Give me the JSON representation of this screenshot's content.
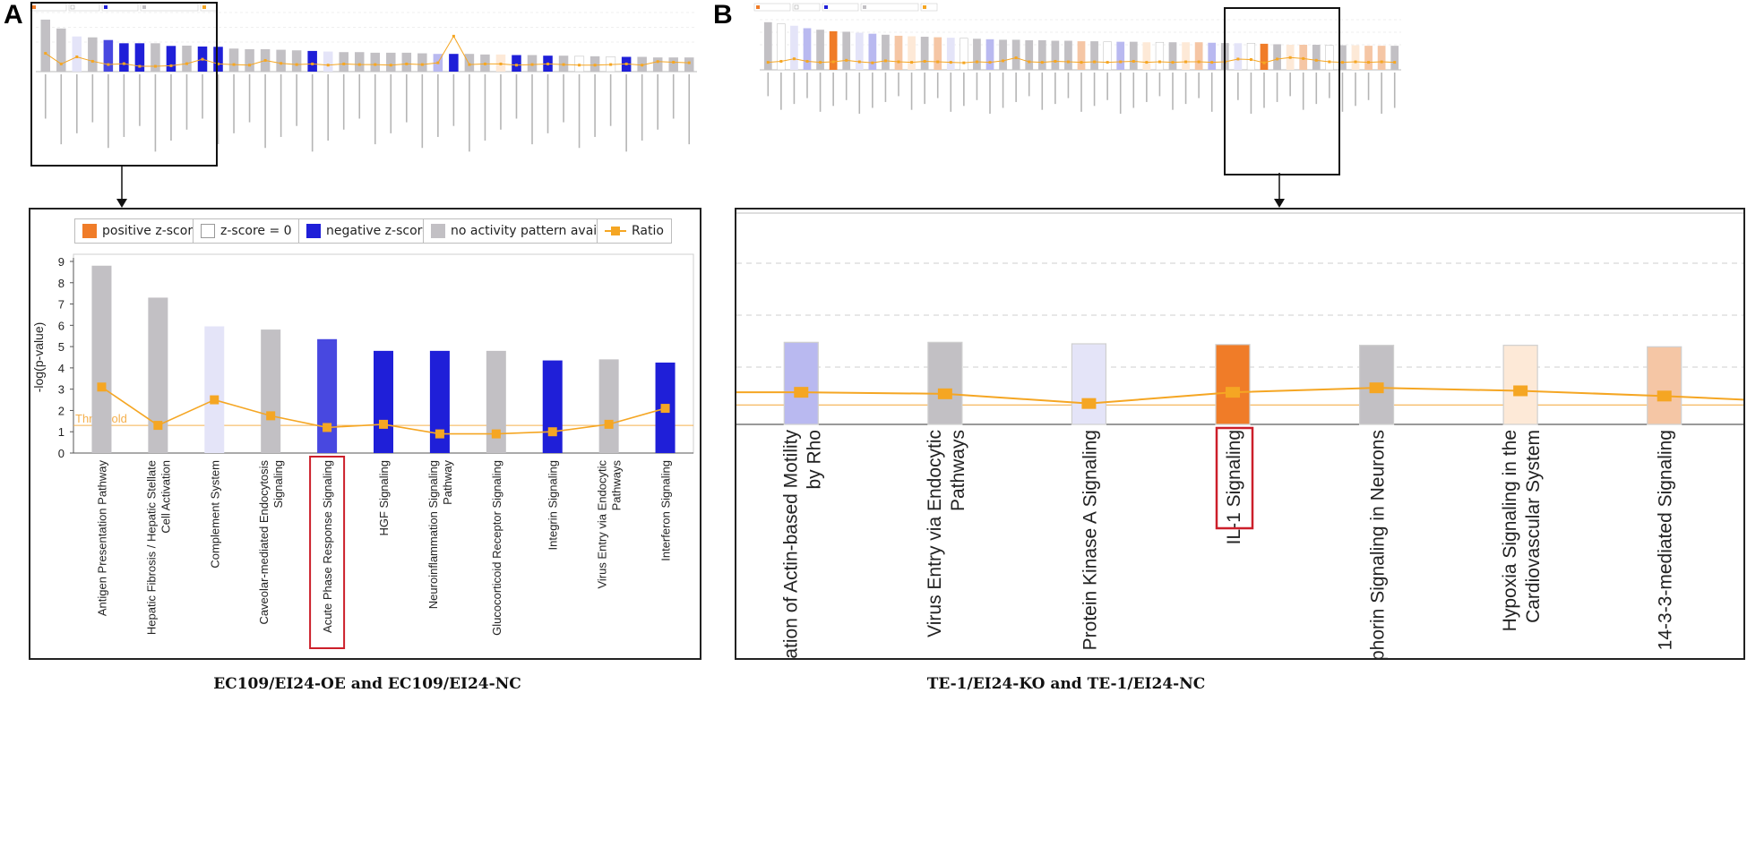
{
  "panels": {
    "a": {
      "letter": "A",
      "caption": "EC109/EI24-OE and EC109/EI24-NC",
      "legend": [
        {
          "key": "positive",
          "label": "positive z-score"
        },
        {
          "key": "zero",
          "label": "z-score = 0"
        },
        {
          "key": "negative",
          "label": "negative z-score"
        },
        {
          "key": "none",
          "label": "no activity pattern available"
        },
        {
          "key": "ratio",
          "label": "Ratio"
        }
      ],
      "threshold_label": "Threshold"
    },
    "b": {
      "letter": "B",
      "caption": "TE-1/EI24-KO and TE-1/EI24-NC"
    }
  },
  "colors": {
    "positive": "#f07c28",
    "positive_light": "#f5c6a5",
    "positive_pale": "#fde9d7",
    "zero": "#ffffff",
    "negative": "#1f1fd8",
    "negative_mid": "#4848e0",
    "negative_light": "#b9b9f0",
    "negative_pale": "#e4e4f8",
    "none": "#c2c0c4",
    "ratio": "#f5a623",
    "highlight": "#cc1f2a",
    "threshold": "#f5b04d"
  },
  "chart_data": [
    {
      "id": "A",
      "type": "bar",
      "title": "",
      "xlabel": "",
      "ylabel": "-log(p-value)",
      "ylim": [
        0,
        9
      ],
      "yticks": [
        0,
        1,
        2,
        3,
        4,
        5,
        6,
        7,
        8,
        9
      ],
      "threshold": 1.3,
      "highlight": "Acute Phase Response Signaling",
      "categories": [
        [
          "Antigen Presentation Pathway"
        ],
        [
          "Hepatic Fibrosis / Hepatic Stellate",
          "Cell Activation"
        ],
        [
          "Complement System"
        ],
        [
          "Caveolar-mediated Endocytosis",
          "Signaling"
        ],
        [
          "Acute Phase Response Signaling"
        ],
        [
          "HGF Signaling"
        ],
        [
          "Neuroinflammation Signaling",
          "Pathway"
        ],
        [
          "Glucocorticoid Receptor Signaling"
        ],
        [
          "Integrin Signaling"
        ],
        [
          "Virus Entry via Endocytic",
          "Pathways"
        ],
        [
          "Interferon Signaling"
        ]
      ],
      "series": [
        {
          "name": "-log(p-value)",
          "values": [
            8.8,
            7.3,
            5.95,
            5.8,
            5.35,
            4.8,
            4.8,
            4.8,
            4.35,
            4.4,
            4.25
          ],
          "color_keys": [
            "none",
            "none",
            "negative_pale",
            "none",
            "negative_mid",
            "negative",
            "negative",
            "none",
            "negative",
            "none",
            "negative"
          ]
        },
        {
          "name": "Ratio",
          "values": [
            3.1,
            1.3,
            2.5,
            1.75,
            1.2,
            1.35,
            0.9,
            0.9,
            1.0,
            1.35,
            2.1
          ]
        }
      ]
    },
    {
      "id": "B",
      "type": "bar",
      "title": "",
      "xlabel": "",
      "ylabel": "",
      "ylim": [
        0,
        12
      ],
      "highlight": "IL-1 Signaling",
      "threshold": 1.3,
      "categories": [
        [
          "Regulation of Actin-based Motility",
          "by Rho"
        ],
        [
          "Virus Entry via Endocytic",
          "Pathways"
        ],
        [
          "Protein Kinase A Signaling"
        ],
        [
          "IL-1 Signaling"
        ],
        [
          "Semaphorin Signaling in Neurons"
        ],
        [
          "Hypoxia Signaling in the",
          "Cardiovascular System"
        ],
        [
          "14-3-3-mediated Signaling"
        ]
      ],
      "series": [
        {
          "name": "-log(p-value)",
          "values": [
            5.5,
            5.5,
            5.4,
            5.35,
            5.3,
            5.3,
            5.2
          ],
          "color_keys": [
            "negative_light",
            "none",
            "negative_pale",
            "positive",
            "none",
            "positive_pale",
            "positive_light"
          ]
        },
        {
          "name": "Ratio",
          "values": [
            2.15,
            2.05,
            1.4,
            2.15,
            2.45,
            2.25,
            1.9
          ]
        }
      ]
    },
    {
      "id": "A-overview",
      "type": "bar",
      "categories_count": 42,
      "series": [
        {
          "name": "-log(p-value)",
          "values": [
            8.8,
            7.3,
            5.95,
            5.8,
            5.35,
            4.8,
            4.8,
            4.8,
            4.35,
            4.4,
            4.25,
            4.2,
            3.9,
            3.8,
            3.8,
            3.7,
            3.6,
            3.5,
            3.4,
            3.3,
            3.3,
            3.2,
            3.2,
            3.2,
            3.1,
            3.0,
            3.0,
            3.0,
            2.9,
            2.9,
            2.8,
            2.8,
            2.7,
            2.7,
            2.6,
            2.6,
            2.5,
            2.5,
            2.5,
            2.4,
            2.4,
            2.4
          ],
          "color_keys": [
            "none",
            "none",
            "negative_pale",
            "none",
            "negative_mid",
            "negative",
            "negative",
            "none",
            "negative",
            "none",
            "negative",
            "negative",
            "none",
            "none",
            "none",
            "none",
            "none",
            "negative",
            "negative_pale",
            "none",
            "none",
            "none",
            "none",
            "none",
            "none",
            "negative_light",
            "negative",
            "none",
            "none",
            "positive_pale",
            "negative",
            "none",
            "negative",
            "none",
            "zero",
            "none",
            "zero",
            "negative",
            "none",
            "none",
            "none",
            "none"
          ]
        },
        {
          "name": "Ratio",
          "values": [
            3.1,
            1.3,
            2.5,
            1.75,
            1.2,
            1.35,
            0.9,
            0.9,
            1.0,
            1.35,
            2.1,
            1.3,
            1.2,
            1.1,
            1.9,
            1.4,
            1.2,
            1.3,
            1.1,
            1.3,
            1.2,
            1.2,
            1.1,
            1.3,
            1.2,
            1.5,
            6.0,
            1.2,
            1.3,
            1.3,
            1.1,
            1.2,
            1.3,
            1.2,
            1.1,
            1.1,
            1.2,
            1.3,
            1.1,
            1.7,
            1.6,
            1.5
          ]
        }
      ]
    },
    {
      "id": "B-overview",
      "type": "bar",
      "categories_count": 49,
      "series": [
        {
          "name": "-log(p-value)",
          "values": [
            9.5,
            9.2,
            8.8,
            8.3,
            8.0,
            7.7,
            7.6,
            7.4,
            7.2,
            7.0,
            6.8,
            6.7,
            6.6,
            6.5,
            6.4,
            6.3,
            6.2,
            6.1,
            6.0,
            6.0,
            5.9,
            5.9,
            5.8,
            5.8,
            5.7,
            5.7,
            5.6,
            5.6,
            5.6,
            5.5,
            5.5,
            5.5,
            5.5,
            5.5,
            5.4,
            5.35,
            5.3,
            5.3,
            5.2,
            5.1,
            5.0,
            5.0,
            5.0,
            4.9,
            4.9,
            4.9,
            4.8,
            4.8,
            4.8
          ],
          "color_keys": [
            "none",
            "zero",
            "negative_pale",
            "negative_light",
            "none",
            "positive",
            "none",
            "negative_pale",
            "negative_light",
            "none",
            "positive_light",
            "positive_pale",
            "none",
            "positive_light",
            "negative_pale",
            "zero",
            "none",
            "negative_light",
            "none",
            "none",
            "none",
            "none",
            "none",
            "none",
            "positive_light",
            "none",
            "zero",
            "negative_light",
            "none",
            "positive_pale",
            "zero",
            "none",
            "positive_pale",
            "positive_light",
            "negative_light",
            "none",
            "negative_pale",
            "zero",
            "positive",
            "none",
            "positive_pale",
            "positive_light",
            "none",
            "zero",
            "none",
            "positive_pale",
            "positive_light",
            "positive_light",
            "none"
          ]
        },
        {
          "name": "Ratio",
          "values": [
            1.5,
            1.7,
            2.2,
            1.7,
            1.5,
            1.6,
            1.9,
            1.6,
            1.4,
            1.8,
            1.6,
            1.5,
            1.7,
            1.6,
            1.5,
            1.4,
            1.6,
            1.5,
            1.8,
            2.4,
            1.6,
            1.5,
            1.7,
            1.6,
            1.5,
            1.6,
            1.5,
            1.6,
            1.7,
            1.5,
            1.6,
            1.5,
            1.6,
            1.6,
            1.5,
            1.6,
            2.15,
            2.05,
            1.4,
            2.15,
            2.45,
            2.25,
            1.9,
            1.6,
            1.5,
            1.6,
            1.5,
            1.6,
            1.5
          ]
        }
      ]
    }
  ]
}
